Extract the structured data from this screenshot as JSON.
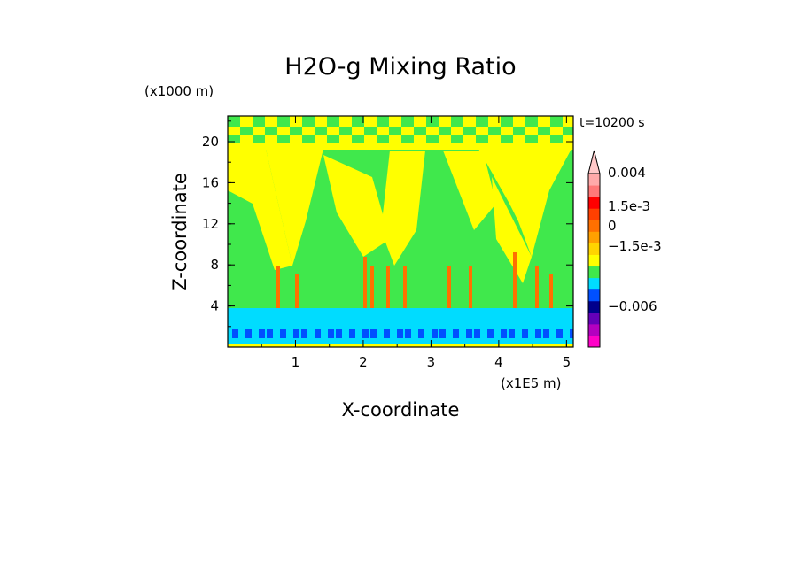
{
  "chart_data": {
    "type": "heatmap",
    "title": "H2O-g Mixing Ratio",
    "xlabel": "X-coordinate",
    "ylabel": "Z-coordinate",
    "x_unit": "(x1E5 m)",
    "y_unit": "(x1000 m)",
    "time_label": "t=10200 s",
    "xlim": [
      0,
      5.1
    ],
    "ylim": [
      0,
      22.5
    ],
    "x_ticks": [
      1,
      2,
      3,
      4,
      5
    ],
    "y_ticks": [
      4,
      8,
      12,
      16,
      20
    ],
    "x_tick_labels": [
      "1",
      "2",
      "3",
      "4",
      "5"
    ],
    "y_tick_labels": [
      "4",
      "8",
      "12",
      "16",
      "20"
    ],
    "colorbar": {
      "labels": [
        "0.004",
        "1.5e-3",
        "0",
        "−1.5e-3",
        "−0.006"
      ],
      "colors": [
        "#ff00c8",
        "#b400c0",
        "#6400b8",
        "#00008c",
        "#0050ff",
        "#00dcff",
        "#40e84c",
        "#ffff00",
        "#ffd400",
        "#ffa000",
        "#ff7000",
        "#ff4000",
        "#ff0000",
        "#ff7878",
        "#ffaaaa"
      ]
    },
    "dominant_classes": [
      {
        "class": "green (~0)",
        "color": "#40e84c"
      },
      {
        "class": "yellow (small positive)",
        "color": "#ffff00"
      },
      {
        "class": "cyan (small negative)",
        "color": "#00dcff"
      },
      {
        "class": "blue (negative)",
        "color": "#0050ff"
      },
      {
        "class": "orange/red (positive)",
        "color": "#ff7000"
      }
    ]
  }
}
